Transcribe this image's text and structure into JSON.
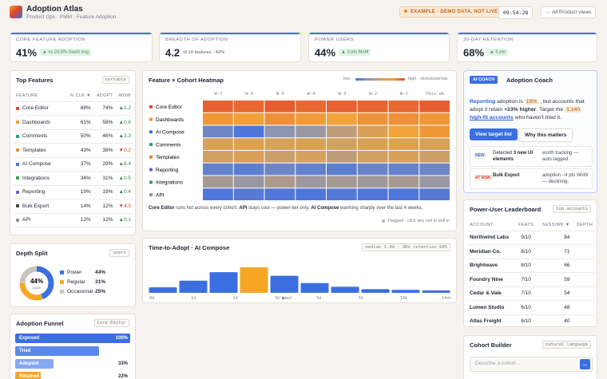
{
  "header": {
    "title": "Adoption Atlas",
    "subtitle": "Product Ops · PMM · Feature Adoption",
    "badge": "EXAMPLE · DEMO DATA, NOT LIVE",
    "clock": "09:54:28",
    "back_button": "← All Product views"
  },
  "kpis": [
    {
      "label": "CORE FEATURE ADOPTION",
      "value": "41%",
      "note": "▲ vs 24.5% SaaS avg",
      "pill": true
    },
    {
      "label": "BREADTH OF ADOPTION",
      "value": "4.2",
      "note": "of 10 features · 42%",
      "pill": false
    },
    {
      "label": "POWER USERS",
      "value": "44%",
      "note": "▲ 3 pts MoM",
      "pill": true
    },
    {
      "label": "30-DAY RETENTION",
      "value": "68%",
      "note": "▲ 5 pts",
      "pill": true
    }
  ],
  "top_features": {
    "title": "Top Features",
    "tag": "sortable",
    "columns": [
      "FEATURE",
      "% CLK ▼",
      "ADOPT",
      "WOW"
    ],
    "rows": [
      {
        "color": "#e0432b",
        "cells": [
          "Core Editor",
          "88%",
          "74%",
          "▲1.2"
        ]
      },
      {
        "color": "#f29a2e",
        "cells": [
          "Dashboards",
          "61%",
          "58%",
          "▲0.8"
        ]
      },
      {
        "color": "#1f9e8a",
        "cells": [
          "Comments",
          "50%",
          "46%",
          "▲3.3"
        ]
      },
      {
        "color": "#e8892a",
        "cells": [
          "Templates",
          "43%",
          "38%",
          "▼0.2"
        ]
      },
      {
        "color": "#3b6fe0",
        "cells": [
          "AI Compose",
          "37%",
          "29%",
          "▲6.4"
        ]
      },
      {
        "color": "#2f9e55",
        "cells": [
          "Integrations",
          "34%",
          "31%",
          "▲0.5"
        ]
      },
      {
        "color": "#6a5acd",
        "cells": [
          "Reporting",
          "19%",
          "19%",
          "▲0.4"
        ]
      },
      {
        "color": "#3a3f4a",
        "cells": [
          "Bulk Export",
          "14%",
          "12%",
          "▼4.0"
        ]
      },
      {
        "color": "#8a8f99",
        "cells": [
          "API",
          "12%",
          "12%",
          "▲0.1"
        ]
      }
    ]
  },
  "depth_split": {
    "title": "Depth Split",
    "tag": "users",
    "center_caption": "power",
    "segments": [
      {
        "name": "Power",
        "value": 44,
        "value_label": "44%",
        "color": "#3b6fe0"
      },
      {
        "name": "Regular",
        "value": 31,
        "value_label": "31%",
        "color": "#f5a623"
      },
      {
        "name": "Occasional",
        "value": 25,
        "value_label": "25%",
        "color": "#c9c5bd"
      }
    ]
  },
  "funnel": {
    "title": "Adoption Funnel",
    "tag": "Core Editor",
    "stages": [
      {
        "name": "Exposed",
        "value": 100,
        "value_label": "100%",
        "color": "#3b6fe0"
      },
      {
        "name": "Tried",
        "value": 73,
        "color": "#5b88ec"
      },
      {
        "name": "Adopted",
        "value": 33,
        "value_label": "33%",
        "color": "#86a8f2"
      },
      {
        "name": "Retained",
        "value": 22,
        "value_label": "22%",
        "color": "#f5a623"
      }
    ]
  },
  "heatmap": {
    "title": "Feature × Cohort Heatmap",
    "legend_low": "low",
    "legend_high": "high · clicks/user/wk",
    "scale_colors": [
      "#3f6ee6",
      "#8d95b0",
      "#c9a06a",
      "#f2a33a",
      "#e0432b"
    ],
    "columns": [
      "W-7",
      "W-6",
      "W-5",
      "W-4",
      "W-3",
      "W-2",
      "W-1",
      "This wk"
    ],
    "rows": [
      {
        "name": "Core Editor",
        "color": "#e0432b",
        "values": [
          0.92,
          0.9,
          0.93,
          0.9,
          0.92,
          0.91,
          0.9,
          0.93
        ]
      },
      {
        "name": "Dashboards",
        "color": "#f29a2e",
        "values": [
          0.78,
          0.76,
          0.8,
          0.77,
          0.75,
          0.79,
          0.8,
          0.78
        ]
      },
      {
        "name": "AI Compose",
        "color": "#3b6fe0",
        "values": [
          0.15,
          0.05,
          0.25,
          0.3,
          0.45,
          0.6,
          0.75,
          0.78
        ]
      },
      {
        "name": "Comments",
        "color": "#1f9e8a",
        "values": [
          0.6,
          0.62,
          0.58,
          0.6,
          0.55,
          0.6,
          0.62,
          0.58
        ]
      },
      {
        "name": "Templates",
        "color": "#e8892a",
        "values": [
          0.55,
          0.6,
          0.5,
          0.58,
          0.45,
          0.55,
          0.6,
          0.52
        ]
      },
      {
        "name": "Reporting",
        "color": "#6a5acd",
        "values": [
          0.12,
          0.1,
          0.15,
          0.12,
          0.1,
          0.14,
          0.12,
          0.15
        ]
      },
      {
        "name": "Integrations",
        "color": "#2f9e55",
        "values": [
          0.35,
          0.3,
          0.38,
          0.32,
          0.35,
          0.33,
          0.36,
          0.3
        ]
      },
      {
        "name": "API",
        "color": "#8a8f99",
        "values": [
          0.05,
          0.08,
          0.06,
          0.05,
          0.07,
          0.06,
          0.05,
          0.08
        ]
      }
    ],
    "caption": [
      {
        "bold": "Core Editor",
        "text": " runs hot across every cohort. "
      },
      {
        "bold": "API",
        "text": " stays cool — power-tier only. "
      },
      {
        "bold": "AI Compose",
        "text": " warming sharply over the last 4 weeks."
      }
    ],
    "footer": "Flagged · click any cell to drill in"
  },
  "time_to_adopt": {
    "title": "Time-to-Adopt · AI Compose",
    "tag": "median 3.4d · 30d retention 68%",
    "values": [
      9,
      20,
      34,
      42,
      28,
      16,
      10,
      6,
      5,
      4
    ],
    "colors": [
      "#3b6fe0",
      "#3b6fe0",
      "#3b6fe0",
      "#f5a623",
      "#3b6fe0",
      "#3b6fe0",
      "#3b6fe0",
      "#3b6fe0",
      "#3b6fe0",
      "#3b6fe0"
    ],
    "ylim": [
      0,
      42
    ],
    "axis_labels": [
      "0d",
      "1d",
      "2d",
      "3d ●med",
      "5d",
      "7d",
      "10d",
      "14d+"
    ]
  },
  "coach": {
    "badge": "AI COACH",
    "title": "Adoption Coach",
    "message": [
      {
        "text": "Reporting",
        "style": "link"
      },
      {
        "text": " adoption is ",
        "style": "plain"
      },
      {
        "text": "19%",
        "style": "pill"
      },
      {
        "text": " , but accounts that adopt it retain ",
        "style": "plain"
      },
      {
        "text": "+23% higher",
        "style": "bold"
      },
      {
        "text": ". Target the ",
        "style": "plain"
      },
      {
        "text": "1,140",
        "style": "pill"
      },
      {
        "text": " ",
        "style": "plain"
      },
      {
        "text": "high-fit accounts",
        "style": "link"
      },
      {
        "text": " who haven't tried it.",
        "style": "plain"
      }
    ],
    "primary_button": "View target list",
    "secondary_button": "Why this matters",
    "items": [
      {
        "tag": "NEW",
        "tag_color": "#3b6fe0",
        "lead": "Detected ",
        "strong": "3 new UI elements",
        "text": "worth tracking — auto-tagged."
      },
      {
        "tag": "AT RISK",
        "tag_color": "#d9402b",
        "lead": "",
        "strong": "Bulk Export",
        "text": "adoption −4 pts WoW — declining."
      }
    ]
  },
  "leaderboard": {
    "title": "Power-User Leaderboard",
    "tag": "top accounts",
    "columns": [
      "ACCOUNT",
      "FEATS",
      "SESS/WK ▼",
      "DEPTH"
    ],
    "rows": [
      [
        "Northwind Labs",
        "9/10",
        "84"
      ],
      [
        "Meridian Co.",
        "8/10",
        "71"
      ],
      [
        "Brightwave",
        "8/10",
        "66"
      ],
      [
        "Foundry Nine",
        "7/10",
        "59"
      ],
      [
        "Cedar & Vale",
        "7/10",
        "54"
      ],
      [
        "Lumen Studio",
        "6/10",
        "48"
      ],
      [
        "Atlas Freight",
        "6/10",
        "40"
      ]
    ]
  },
  "cohort_builder": {
    "title": "Cohort Builder",
    "tag": "natural language",
    "placeholder": "Describe a cohort...",
    "send": "→"
  }
}
